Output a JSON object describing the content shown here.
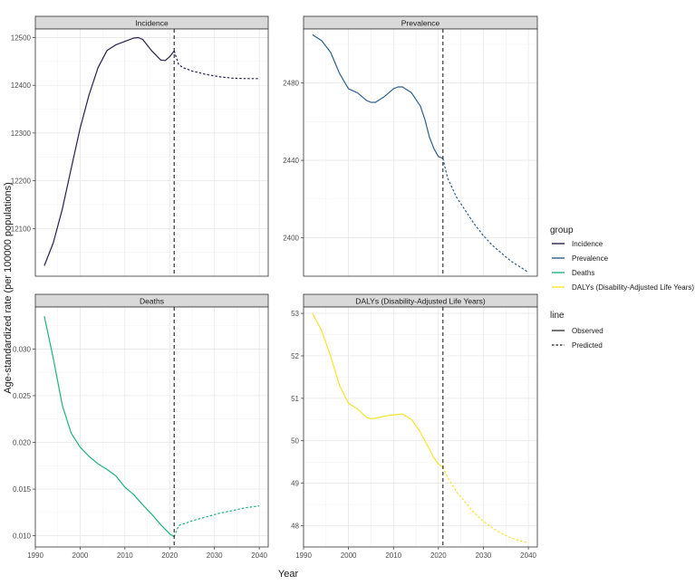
{
  "x_axis_title": "Year",
  "y_axis_title": "Age-standardized rate (per 100000 populations)",
  "vline_year": 2021,
  "legend": {
    "group_title": "group",
    "groups": [
      {
        "label": "Incidence",
        "color": "#2c1e4a"
      },
      {
        "label": "Prevalence",
        "color": "#2d5f8a"
      },
      {
        "label": "Deaths",
        "color": "#1db47a"
      },
      {
        "label": "DALYs (Disability-Adjusted Life Years)",
        "color": "#f6e52a"
      }
    ],
    "line_title": "line",
    "lines": [
      {
        "label": "Observed",
        "style": "solid"
      },
      {
        "label": "Predicted",
        "style": "dashed"
      }
    ]
  },
  "chart_data": [
    {
      "type": "line",
      "title": "Incidence",
      "color": "#2c1e4a",
      "xlim": [
        1990,
        2042
      ],
      "ylim": [
        12000,
        12518
      ],
      "xticks": [
        1990,
        2000,
        2010,
        2020,
        2030,
        2040
      ],
      "yticks": [
        12100,
        12200,
        12300,
        12400,
        12500
      ],
      "show_xticks": false,
      "series": [
        {
          "line": "Observed",
          "x": [
            1992,
            1994,
            1996,
            1998,
            2000,
            2002,
            2004,
            2006,
            2008,
            2010,
            2012,
            2013,
            2014,
            2016,
            2018,
            2019,
            2020,
            2021
          ],
          "y": [
            12022,
            12070,
            12140,
            12225,
            12310,
            12380,
            12437,
            12473,
            12485,
            12492,
            12499,
            12500,
            12496,
            12472,
            12453,
            12452,
            12460,
            12472
          ]
        },
        {
          "line": "Predicted",
          "x": [
            2021,
            2022,
            2023,
            2025,
            2028,
            2031,
            2034,
            2037,
            2040
          ],
          "y": [
            12472,
            12443,
            12437,
            12430,
            12423,
            12418,
            12415,
            12414,
            12414
          ]
        }
      ]
    },
    {
      "type": "line",
      "title": "Prevalence",
      "color": "#2d5f8a",
      "xlim": [
        1990,
        2042
      ],
      "ylim": [
        2380,
        2508
      ],
      "xticks": [
        1990,
        2000,
        2010,
        2020,
        2030,
        2040
      ],
      "yticks": [
        2400,
        2440,
        2480
      ],
      "show_xticks": false,
      "series": [
        {
          "line": "Observed",
          "x": [
            1992,
            1994,
            1996,
            1998,
            2000,
            2001,
            2002,
            2004,
            2005,
            2006,
            2008,
            2010,
            2011,
            2012,
            2014,
            2016,
            2017,
            2018,
            2019,
            2020,
            2021
          ],
          "y": [
            2505,
            2502,
            2496,
            2485,
            2477,
            2476,
            2475,
            2471,
            2470,
            2470,
            2473,
            2477,
            2478,
            2478,
            2475,
            2468,
            2461,
            2452,
            2446,
            2442,
            2441
          ]
        },
        {
          "line": "Predicted",
          "x": [
            2021,
            2022,
            2024,
            2026,
            2028,
            2030,
            2032,
            2034,
            2036,
            2038,
            2040
          ],
          "y": [
            2441,
            2431,
            2421,
            2414,
            2407,
            2401,
            2396,
            2392,
            2388,
            2385,
            2382
          ]
        }
      ]
    },
    {
      "type": "line",
      "title": "Deaths",
      "color": "#1db47a",
      "xlim": [
        1990,
        2042
      ],
      "ylim": [
        0.0088,
        0.0345
      ],
      "xticks": [
        1990,
        2000,
        2010,
        2020,
        2030,
        2040
      ],
      "yticks": [
        0.01,
        0.015,
        0.02,
        0.025,
        0.03
      ],
      "show_xticks": true,
      "series": [
        {
          "line": "Observed",
          "x": [
            1992,
            1994,
            1996,
            1998,
            2000,
            2002,
            2004,
            2006,
            2008,
            2010,
            2012,
            2014,
            2016,
            2018,
            2020,
            2021
          ],
          "y": [
            0.0335,
            0.029,
            0.024,
            0.021,
            0.0195,
            0.0185,
            0.0177,
            0.0171,
            0.0164,
            0.0152,
            0.0144,
            0.0133,
            0.0123,
            0.0112,
            0.0102,
            0.0099
          ]
        },
        {
          "line": "Predicted",
          "x": [
            2021,
            2022,
            2025,
            2028,
            2031,
            2034,
            2037,
            2040
          ],
          "y": [
            0.0099,
            0.0111,
            0.0116,
            0.012,
            0.0124,
            0.0127,
            0.013,
            0.0132
          ]
        }
      ]
    },
    {
      "type": "line",
      "title": "DALYs (Disability-Adjusted Life Years)",
      "color": "#f6e52a",
      "xlim": [
        1990,
        2042
      ],
      "ylim": [
        47.5,
        53.15
      ],
      "xticks": [
        1990,
        2000,
        2010,
        2020,
        2030,
        2040
      ],
      "yticks": [
        48,
        49,
        50,
        51,
        52,
        53
      ],
      "show_xticks": true,
      "series": [
        {
          "line": "Observed",
          "x": [
            1992,
            1994,
            1996,
            1998,
            2000,
            2002,
            2004,
            2005,
            2006,
            2008,
            2010,
            2012,
            2014,
            2016,
            2018,
            2019,
            2020,
            2021
          ],
          "y": [
            53.0,
            52.6,
            52.0,
            51.3,
            50.88,
            50.75,
            50.55,
            50.52,
            50.53,
            50.58,
            50.61,
            50.63,
            50.5,
            50.2,
            49.8,
            49.6,
            49.45,
            49.38
          ]
        },
        {
          "line": "Predicted",
          "x": [
            2021,
            2022,
            2024,
            2026,
            2028,
            2030,
            2032,
            2034,
            2036,
            2038,
            2040
          ],
          "y": [
            49.38,
            49.15,
            48.8,
            48.55,
            48.3,
            48.1,
            47.95,
            47.82,
            47.72,
            47.65,
            47.6
          ]
        }
      ]
    }
  ]
}
